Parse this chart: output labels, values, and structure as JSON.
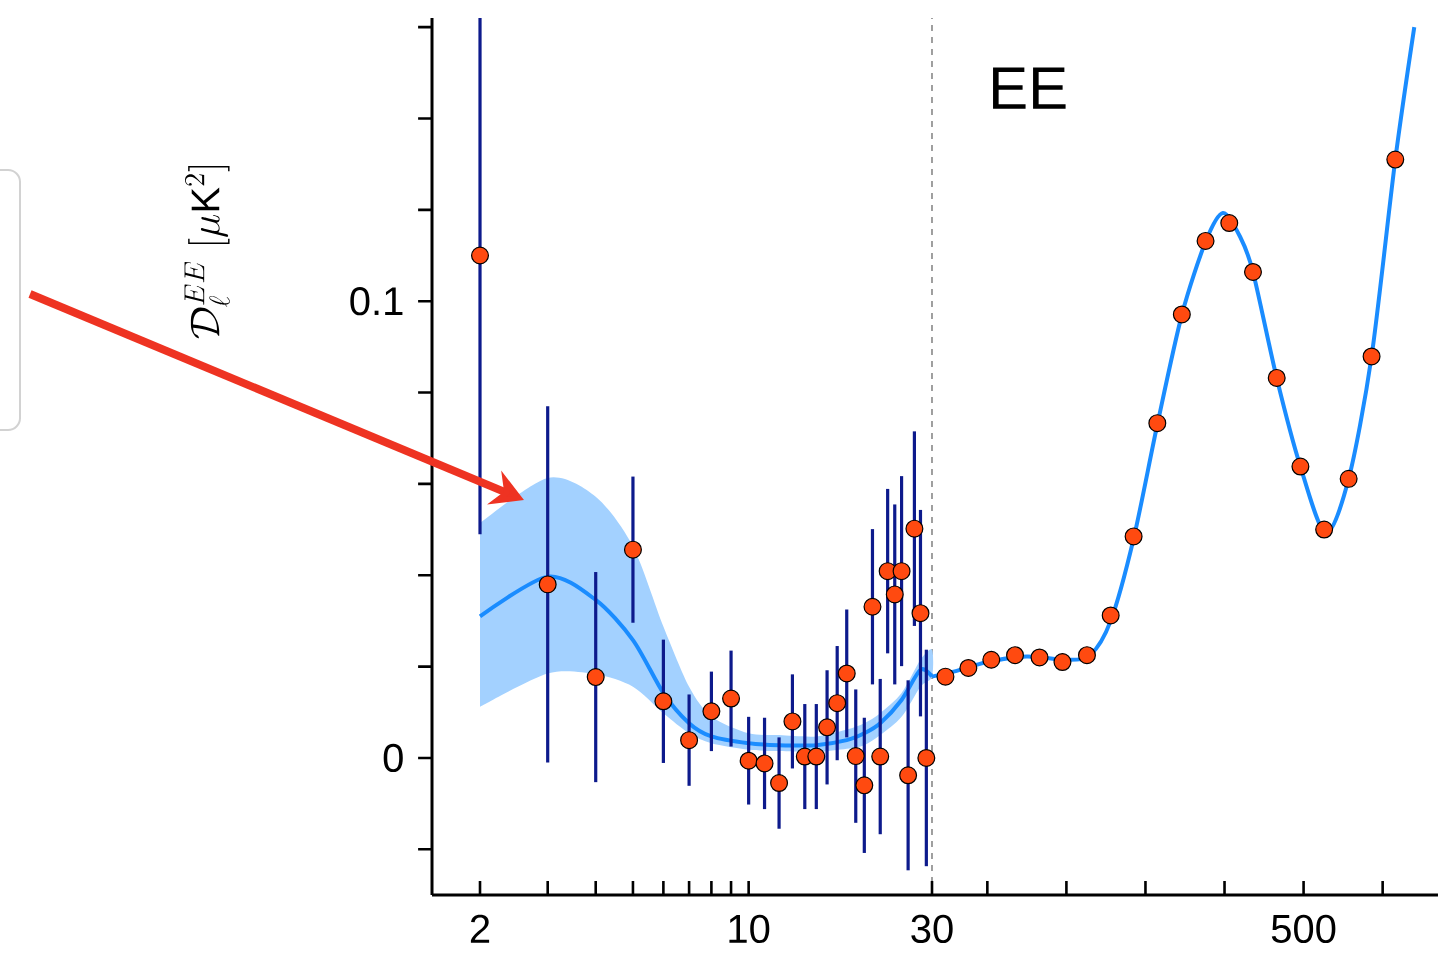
{
  "chart_data": [
    {
      "type": "scatter",
      "ylabel": "\\mathcal{D}_\\ell^{EE}\\;[\\mu\\mathrm{K}^2]",
      "log": "x",
      "xlim": [
        1.5,
        30
      ],
      "xticks": [
        2,
        {
          "value": 3,
          "label": null
        },
        {
          "value": 4,
          "label": null
        },
        {
          "value": 5,
          "label": null
        },
        {
          "value": 6,
          "label": null
        },
        {
          "value": 7,
          "label": null
        },
        {
          "value": 8,
          "label": null
        },
        {
          "value": 9,
          "label": null
        },
        10
      ],
      "ylim": [
        -0.03,
        0.162
      ],
      "yticks": [
        {
          "value": -0.02,
          "label": null
        },
        0,
        {
          "value": 0.02,
          "label": null
        },
        {
          "value": 0.04,
          "label": null
        },
        {
          "value": 0.06,
          "label": null
        },
        {
          "value": 0.08,
          "label": null
        },
        0.1,
        {
          "value": 0.12,
          "label": null
        },
        {
          "value": 0.14,
          "label": null
        },
        {
          "value": 0.16,
          "label": null
        }
      ],
      "ref_lines": [
        {
          "axis": "x",
          "value": 30,
          "color": "#888888",
          "line_style": "dashed"
        }
      ],
      "series": [
        {
          "type": "line",
          "color": "#1a8cff",
          "marker": "none",
          "x": [
            2,
            3,
            4,
            5,
            6,
            7,
            8,
            10,
            12,
            15,
            18,
            20,
            22,
            25,
            28,
            30
          ],
          "values": [
            0.031,
            0.0397,
            0.0346,
            0.0258,
            0.0142,
            0.0076,
            0.0047,
            0.0032,
            0.0028,
            0.0028,
            0.0039,
            0.0054,
            0.0076,
            0.0127,
            0.0193,
            0.0178
          ],
          "lower": [
            0.0112,
            0.0185,
            0.0183,
            0.0156,
            0.0098,
            0.0054,
            0.0032,
            0.0018,
            0.0015,
            0.0013,
            0.002,
            0.0028,
            0.005,
            0.009,
            0.0156,
            0.0178
          ],
          "upper": [
            0.0514,
            0.0613,
            0.0572,
            0.0463,
            0.0288,
            0.0156,
            0.0091,
            0.0054,
            0.005,
            0.0047,
            0.0062,
            0.0076,
            0.0098,
            0.0142,
            0.0215,
            0.0237
          ]
        },
        {
          "color": "#ff4a10",
          "marker": "circle",
          "x": [
            2,
            3,
            4,
            5,
            6,
            7,
            8,
            9,
            10,
            11,
            12,
            13,
            14,
            15,
            16,
            17,
            18,
            19,
            20,
            21,
            22,
            23,
            24,
            25,
            26,
            27,
            28,
            29
          ],
          "values": [
            0.11,
            0.038,
            0.0177,
            0.0456,
            0.0124,
            0.0039,
            0.0102,
            0.013,
            -0.0006,
            -0.0012,
            -0.0055,
            0.008,
            0.0003,
            0.0003,
            0.0067,
            0.012,
            0.0185,
            0.0004,
            -0.006,
            0.0331,
            0.0003,
            0.0409,
            0.0358,
            0.0409,
            -0.0038,
            0.0502,
            0.0317,
            0.0
          ],
          "errors": [
            [
              0.049,
              0.162
            ],
            0.039,
            0.023,
            0.016,
            0.0135,
            0.01,
            0.0087,
            0.0105,
            0.0096,
            0.01,
            0.01,
            0.0103,
            0.0115,
            0.0115,
            0.0125,
            0.0125,
            0.014,
            0.0146,
            0.0148,
            0.017,
            0.017,
            0.018,
            0.0197,
            0.0208,
            0.0208,
            0.0213,
            0.0226,
            0.0237
          ]
        }
      ]
    },
    {
      "type": "scatter",
      "tick_labels": "x",
      "annotations": [
        "EE"
      ],
      "xlim": [
        30,
        670
      ],
      "xticks": [
        30,
        {
          "value": 100,
          "label": null
        },
        {
          "value": 200,
          "label": null
        },
        {
          "value": 300,
          "label": null
        },
        {
          "value": 400,
          "label": null
        },
        500,
        {
          "value": 600,
          "label": null
        }
      ],
      "ylim": [
        -0.03,
        0.162
      ],
      "series": [
        {
          "type": "line",
          "color": "#1a8cff",
          "marker": "none",
          "x": [
            30,
            60,
            100,
            150,
            200,
            230,
            256,
            285,
            315,
            346,
            376,
            398,
            420,
            436,
            466,
            496,
            528,
            557,
            586,
            616,
            640
          ],
          "values": [
            0.0178,
            0.019,
            0.021,
            0.0222,
            0.0215,
            0.0225,
            0.03,
            0.048,
            0.073,
            0.097,
            0.113,
            0.1193,
            0.114,
            0.1064,
            0.0832,
            0.0638,
            0.0492,
            0.0611,
            0.0879,
            0.131,
            0.16
          ]
        },
        {
          "color": "#ff4a10",
          "marker": "circle",
          "x": [
            47,
            76,
            105,
            135,
            166,
            195,
            226,
            256,
            285,
            315,
            346,
            376,
            406,
            436,
            466,
            496,
            526,
            557,
            586,
            616
          ],
          "values": [
            0.0178,
            0.0197,
            0.0215,
            0.0225,
            0.022,
            0.021,
            0.0225,
            0.0312,
            0.0485,
            0.0733,
            0.0971,
            0.1132,
            0.1171,
            0.1064,
            0.0832,
            0.0638,
            0.05,
            0.0611,
            0.0879,
            0.131
          ]
        }
      ]
    }
  ]
}
